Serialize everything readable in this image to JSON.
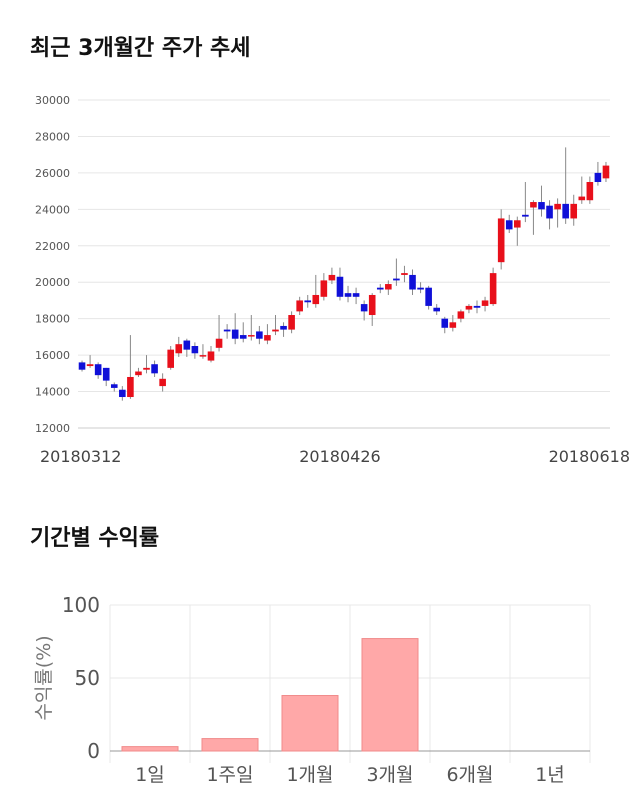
{
  "sections": {
    "price_title": "최근 3개월간 주가 추세",
    "returns_title": "기간별 수익률"
  },
  "chart_data": [
    {
      "type": "candlestick",
      "title": "최근 3개월간 주가 추세",
      "ylim": [
        12000,
        30000
      ],
      "yticks": [
        12000,
        14000,
        16000,
        18000,
        20000,
        22000,
        24000,
        26000,
        28000,
        30000
      ],
      "xtick_labels": [
        {
          "index": 0,
          "label": "20180312"
        },
        {
          "index": 32,
          "label": "20180426"
        },
        {
          "index": 64,
          "label": "20180618"
        }
      ],
      "grid": true,
      "colors": {
        "up": "#e8101b",
        "down": "#1010d8",
        "wick": "#888888"
      },
      "candles": [
        [
          15600,
          15200,
          15700,
          15100
        ],
        [
          15400,
          15500,
          16000,
          15300
        ],
        [
          15500,
          14900,
          15600,
          14700
        ],
        [
          15300,
          14600,
          15300,
          14300
        ],
        [
          14400,
          14200,
          14500,
          14000
        ],
        [
          14100,
          13700,
          14300,
          13500
        ],
        [
          13700,
          14800,
          17100,
          13600
        ],
        [
          14900,
          15100,
          15300,
          14800
        ],
        [
          15200,
          15300,
          16000,
          15000
        ],
        [
          15500,
          15000,
          15700,
          14800
        ],
        [
          14300,
          14700,
          15000,
          14000
        ],
        [
          15300,
          16300,
          16500,
          15200
        ],
        [
          16100,
          16600,
          17000,
          15900
        ],
        [
          16800,
          16300,
          16900,
          15900
        ],
        [
          16500,
          16100,
          16700,
          15800
        ],
        [
          16000,
          16000,
          16600,
          15800
        ],
        [
          15700,
          16200,
          16500,
          15600
        ],
        [
          16400,
          16900,
          18200,
          16200
        ],
        [
          17400,
          17300,
          17700,
          16900
        ],
        [
          17400,
          16900,
          18300,
          16600
        ],
        [
          17100,
          16900,
          17800,
          16700
        ],
        [
          17100,
          17100,
          18200,
          16800
        ],
        [
          17300,
          16900,
          17600,
          16600
        ],
        [
          16800,
          17100,
          17700,
          16600
        ],
        [
          17300,
          17400,
          18200,
          17100
        ],
        [
          17600,
          17400,
          17800,
          17000
        ],
        [
          17400,
          18200,
          18400,
          17200
        ],
        [
          18400,
          19000,
          19200,
          18200
        ],
        [
          19000,
          18900,
          19300,
          18600
        ],
        [
          18800,
          19300,
          20400,
          18600
        ],
        [
          19200,
          20100,
          20500,
          19000
        ],
        [
          20100,
          20400,
          20800,
          19900
        ],
        [
          20300,
          19200,
          20800,
          19000
        ],
        [
          19400,
          19200,
          19800,
          18900
        ],
        [
          19400,
          19200,
          19700,
          18800
        ],
        [
          18800,
          18400,
          19000,
          17900
        ],
        [
          18200,
          19300,
          19400,
          17600
        ],
        [
          19700,
          19600,
          19900,
          19400
        ],
        [
          19600,
          19900,
          20100,
          19300
        ],
        [
          20200,
          20100,
          21300,
          19800
        ],
        [
          20400,
          20500,
          20900,
          20000
        ],
        [
          20400,
          19600,
          20700,
          19300
        ],
        [
          19700,
          19600,
          20000,
          19400
        ],
        [
          19700,
          18700,
          19800,
          18500
        ],
        [
          18600,
          18400,
          18800,
          18200
        ],
        [
          18000,
          17500,
          18100,
          17200
        ],
        [
          17500,
          17800,
          18200,
          17300
        ],
        [
          18000,
          18400,
          18500,
          17800
        ],
        [
          18500,
          18700,
          18800,
          18300
        ],
        [
          18700,
          18600,
          19000,
          18300
        ],
        [
          18700,
          19000,
          19200,
          18400
        ],
        [
          18800,
          20500,
          20800,
          18700
        ],
        [
          21100,
          23500,
          24000,
          20700
        ],
        [
          23400,
          22900,
          23700,
          22700
        ],
        [
          23000,
          23400,
          23600,
          22000
        ],
        [
          23700,
          23600,
          25500,
          23300
        ],
        [
          24100,
          24400,
          24500,
          22600
        ],
        [
          24400,
          24000,
          25300,
          23600
        ],
        [
          24200,
          23500,
          24500,
          22900
        ],
        [
          24000,
          24300,
          24600,
          23000
        ],
        [
          24300,
          23500,
          27400,
          23200
        ],
        [
          23500,
          24300,
          24800,
          23100
        ],
        [
          24500,
          24700,
          25800,
          24300
        ],
        [
          24500,
          25500,
          25800,
          24300
        ],
        [
          26000,
          25500,
          26600,
          25300
        ],
        [
          25700,
          26400,
          26600,
          25500
        ]
      ]
    },
    {
      "type": "bar",
      "title": "기간별 수익률",
      "ylabel": "수익률(%)",
      "categories": [
        "1일",
        "1주일",
        "1개월",
        "3개월",
        "6개월",
        "1년"
      ],
      "values": [
        3,
        8.5,
        38,
        77,
        0,
        0
      ],
      "ylim": [
        0,
        100
      ],
      "yticks": [
        0,
        50,
        100
      ],
      "grid": true,
      "colors": {
        "bar": "#ffa8a8",
        "bar_edge": "#f08a8a"
      }
    }
  ]
}
